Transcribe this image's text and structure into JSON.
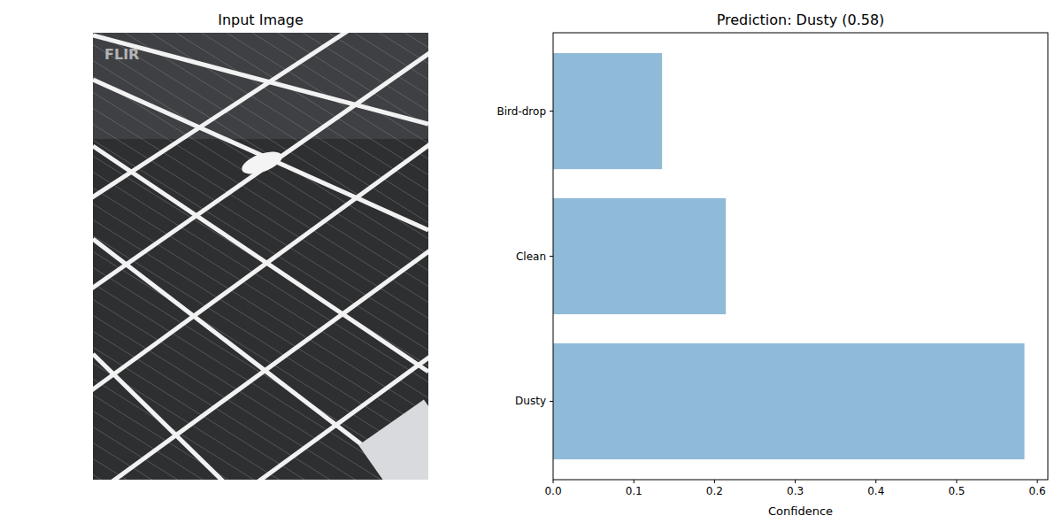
{
  "image": {
    "title": "Input Image",
    "watermark": "FLIR"
  },
  "chart_data": {
    "type": "bar",
    "orientation": "horizontal",
    "title": "Prediction: Dusty (0.58)",
    "x_label": "Confidence",
    "categories": [
      "Dusty",
      "Clean",
      "Bird-drop"
    ],
    "values": [
      0.584,
      0.214,
      0.135
    ],
    "color": "#8fbbd9",
    "xlim": [
      0,
      0.613
    ],
    "xticks": [
      {
        "value": 0,
        "label": "0.0"
      },
      0.1,
      0.2,
      0.3,
      0.4,
      0.5,
      0.6
    ],
    "grid": false
  }
}
